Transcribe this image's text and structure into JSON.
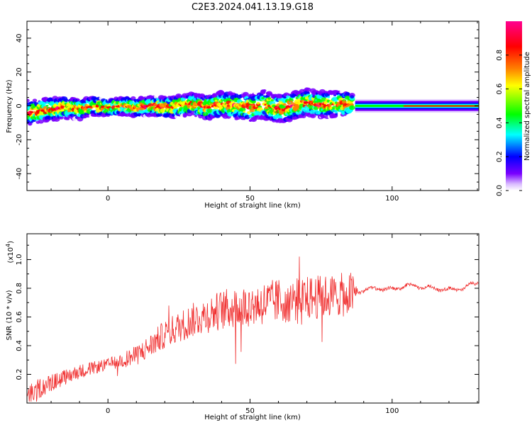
{
  "chart_data": [
    {
      "type": "heatmap",
      "title": "C2E3.2024.041.13.19.G18",
      "xlabel": "Height of straight line (km)",
      "ylabel": "Frequency (Hz)",
      "xlim": [
        -28.5,
        130.5
      ],
      "ylim": [
        -50,
        50
      ],
      "x_ticks": [
        0,
        50,
        100
      ],
      "y_ticks": [
        -40,
        -20,
        0,
        20,
        40
      ],
      "x_tick_labels": [
        "0",
        "50",
        "100"
      ],
      "y_tick_labels": [
        "-40",
        "-20",
        "0",
        "20",
        "40"
      ],
      "colorbar": {
        "label": "Normalized spectral amplitude",
        "range": [
          0,
          1
        ],
        "ticks": [
          0,
          0.2,
          0.4,
          0.6,
          0.8
        ],
        "tick_labels": [
          "0.0",
          "0.2",
          "0.4",
          "0.6",
          "0.8"
        ],
        "colors": [
          "#ffffff",
          "#7a00ff",
          "#0000ff",
          "#00ffff",
          "#00ff00",
          "#ffff00",
          "#ff8000",
          "#ff0000",
          "#ff0090"
        ]
      },
      "centerline": {
        "x": [
          -28,
          -20,
          -15,
          -10,
          -5,
          0,
          5,
          10,
          15,
          20,
          25,
          30,
          35,
          40,
          45,
          50,
          55,
          60,
          65,
          70,
          75,
          80,
          86,
          90,
          100,
          110,
          120,
          130
        ],
        "y": [
          -4,
          -2,
          -1,
          -2,
          0,
          -1,
          0,
          -1,
          0,
          -1,
          0,
          1,
          -1,
          1,
          0,
          -1,
          1,
          -2,
          0,
          2,
          1,
          1,
          1,
          0,
          0,
          0,
          0,
          0
        ]
      },
      "band_halfwidth": {
        "x": [
          -28,
          -10,
          0,
          20,
          40,
          60,
          85,
          87,
          130
        ],
        "y": [
          6,
          5,
          4,
          5,
          6,
          7,
          6,
          3,
          3
        ]
      }
    },
    {
      "type": "line",
      "xlabel": "Height of straight line (km)",
      "ylabel": "SNR (10 * v/v)",
      "y_scale_label": "(x10",
      "y_scale_exp": "4",
      "y_scale_close": ")",
      "xlim": [
        -28.5,
        130.5
      ],
      "ylim": [
        0,
        1.18
      ],
      "x_ticks": [
        0,
        50,
        100
      ],
      "y_ticks": [
        0.2,
        0.4,
        0.6,
        0.8,
        1.0
      ],
      "x_tick_labels": [
        "0",
        "50",
        "100"
      ],
      "y_tick_labels": [
        "0.2",
        "0.4",
        "0.6",
        "0.8",
        "1.0"
      ],
      "color": "#f03030",
      "trend": {
        "x": [
          -28,
          -20,
          -10,
          0,
          10,
          15,
          20,
          30,
          40,
          50,
          60,
          70,
          80,
          86,
          88,
          95,
          100,
          105,
          110,
          115,
          120,
          125,
          130
        ],
        "y": [
          0.07,
          0.14,
          0.22,
          0.27,
          0.33,
          0.4,
          0.48,
          0.58,
          0.65,
          0.68,
          0.71,
          0.73,
          0.75,
          0.76,
          0.78,
          0.8,
          0.79,
          0.82,
          0.81,
          0.8,
          0.79,
          0.8,
          0.84
        ]
      },
      "noise": {
        "x": [
          -28,
          -20,
          0,
          20,
          40,
          60,
          80,
          86,
          88,
          130
        ],
        "amplitude": [
          0.08,
          0.06,
          0.04,
          0.1,
          0.14,
          0.16,
          0.15,
          0.16,
          0.02,
          0.02
        ]
      }
    }
  ]
}
